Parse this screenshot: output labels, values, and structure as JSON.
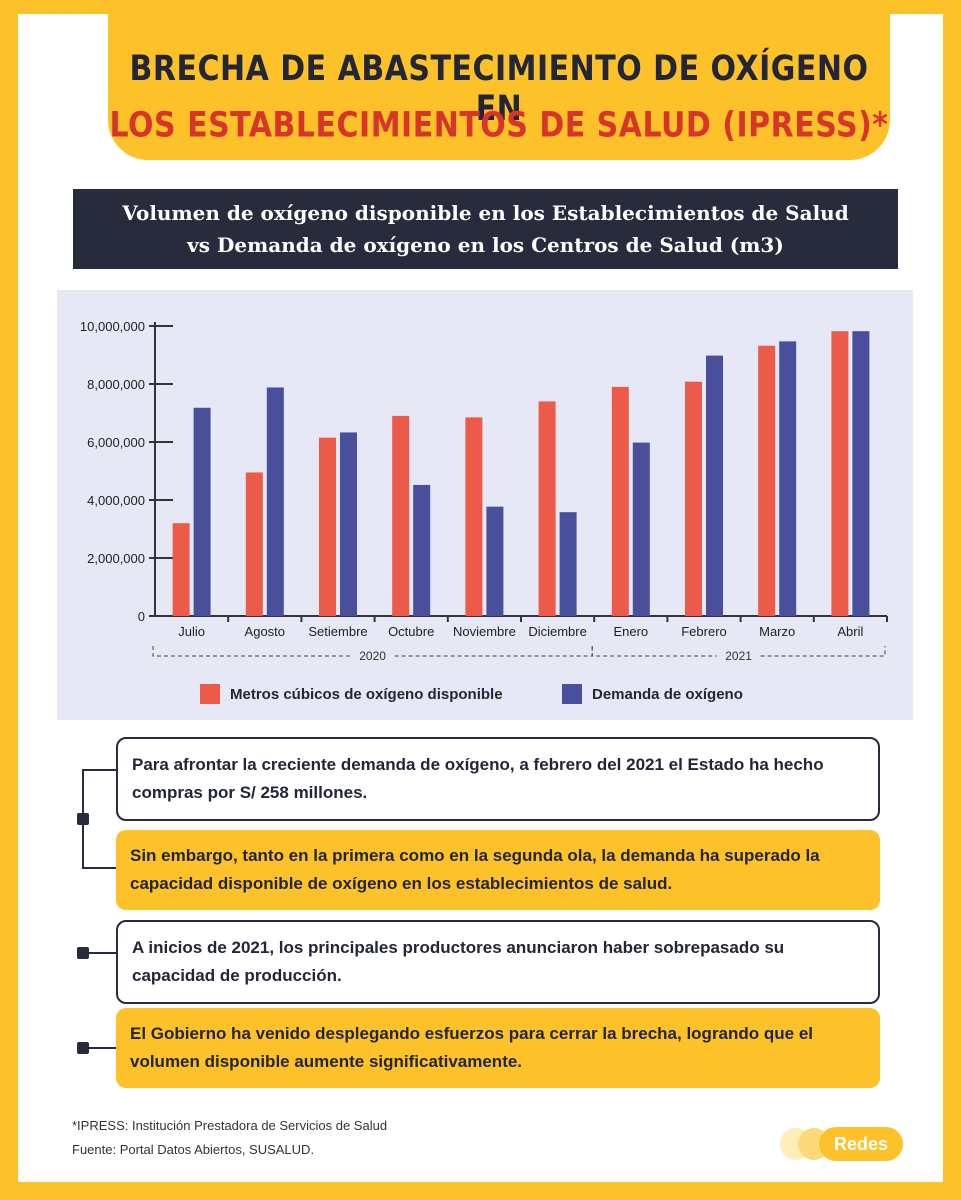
{
  "title": {
    "line1": "Brecha de abastecimiento de oxígeno en",
    "line2": "los establecimientos de salud (IPRESS)*"
  },
  "chart_header": "Volumen de oxígeno disponible en los Establecimientos de Salud vs Demanda de oxígeno en los Centros de Salud (m3)",
  "chart_data": {
    "type": "bar",
    "categories": [
      "Julio",
      "Agosto",
      "Setiembre",
      "Octubre",
      "Noviembre",
      "Diciembre",
      "Enero",
      "Febrero",
      "Marzo",
      "Abril"
    ],
    "series": [
      {
        "name": "Metros cúbicos de oxígeno disponible",
        "color": "#ec5a4a",
        "values": [
          3200000,
          4950000,
          6150000,
          6900000,
          6850000,
          7400000,
          7900000,
          8080000,
          9320000,
          9820000
        ]
      },
      {
        "name": "Demanda de oxígeno",
        "color": "#4a4f9c",
        "values": [
          7180000,
          7880000,
          6330000,
          4520000,
          3770000,
          3580000,
          5980000,
          8980000,
          9470000,
          9820000
        ]
      }
    ],
    "yticks": [
      "0",
      "2,000,000",
      "4,000,000",
      "6,000,000",
      "8,000,000",
      "10,000,000"
    ],
    "ylim": [
      0,
      10000000
    ],
    "year_groups": [
      {
        "label": "2020",
        "from": 0,
        "to": 5
      },
      {
        "label": "2021",
        "from": 6,
        "to": 9
      }
    ],
    "legend_position": "bottom",
    "grid": false
  },
  "boxes": [
    "Para afrontar la creciente demanda de oxígeno, a febrero del 2021 el Estado ha hecho compras por S/ 258 millones.",
    "Sin embargo, tanto en la primera como en la segunda ola, la demanda ha superado la capacidad disponible de oxígeno en los establecimientos de salud.",
    "A inicios de 2021, los principales productores anunciaron haber sobrepasado su capacidad de producción.",
    "El Gobierno ha venido desplegando esfuerzos para cerrar la brecha, logrando que el volumen disponible aumente significativamente."
  ],
  "footnotes": {
    "ipress": "*IPRESS: Institución Prestadora de Servicios de Salud",
    "source": "Fuente: Portal Datos Abiertos, SUSALUD."
  },
  "logo": "Redes",
  "colors": {
    "background": "#fdc22a",
    "dark": "#272b3c",
    "red": "#ec5a4a",
    "blue": "#4a4f9c",
    "title_red": "#d8352a"
  }
}
